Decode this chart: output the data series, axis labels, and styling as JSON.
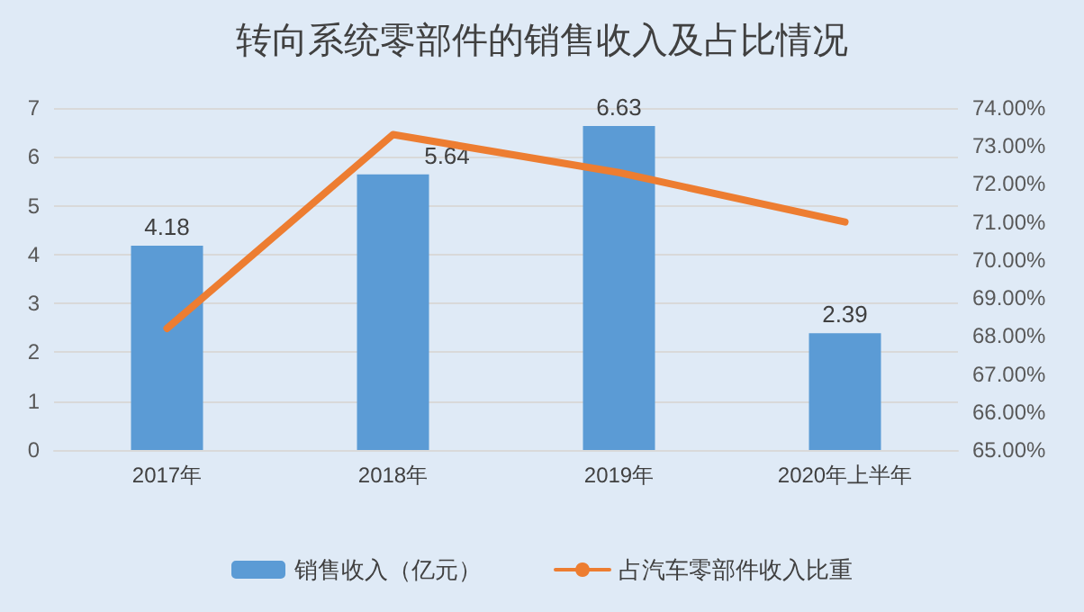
{
  "chart_data": {
    "type": "bar",
    "title": "转向系统零部件的销售收入及占比情况",
    "categories": [
      "2017年",
      "2018年",
      "2019年",
      "2020年上半年"
    ],
    "series": [
      {
        "name": "销售收入（亿元）",
        "color": "#5b9bd5",
        "values": [
          4.18,
          5.64,
          6.63,
          2.39
        ],
        "value_labels": [
          "4.18",
          "5.64",
          "6.63",
          "2.39"
        ]
      },
      {
        "name": "占汽车零部件收入比重",
        "type": "line",
        "axis": "y2",
        "color": "#ed7d31",
        "values": [
          68.2,
          73.3,
          72.3,
          71.0
        ],
        "marker": "none"
      }
    ],
    "ylim": [
      0,
      7
    ],
    "yticks": [
      0,
      1,
      2,
      3,
      4,
      5,
      6,
      7
    ],
    "y2lim": [
      65,
      74
    ],
    "y2ticks": [
      {
        "value": 65,
        "label": "65.00%"
      },
      {
        "value": 66,
        "label": "66.00%"
      },
      {
        "value": 67,
        "label": "67.00%"
      },
      {
        "value": 68,
        "label": "68.00%"
      },
      {
        "value": 69,
        "label": "69.00%"
      },
      {
        "value": 70,
        "label": "70.00%"
      },
      {
        "value": 71,
        "label": "71.00%"
      },
      {
        "value": 72,
        "label": "72.00%"
      },
      {
        "value": 73,
        "label": "73.00%"
      },
      {
        "value": 74,
        "label": "74.00%"
      }
    ],
    "grid": "y",
    "legend": "bottom"
  }
}
